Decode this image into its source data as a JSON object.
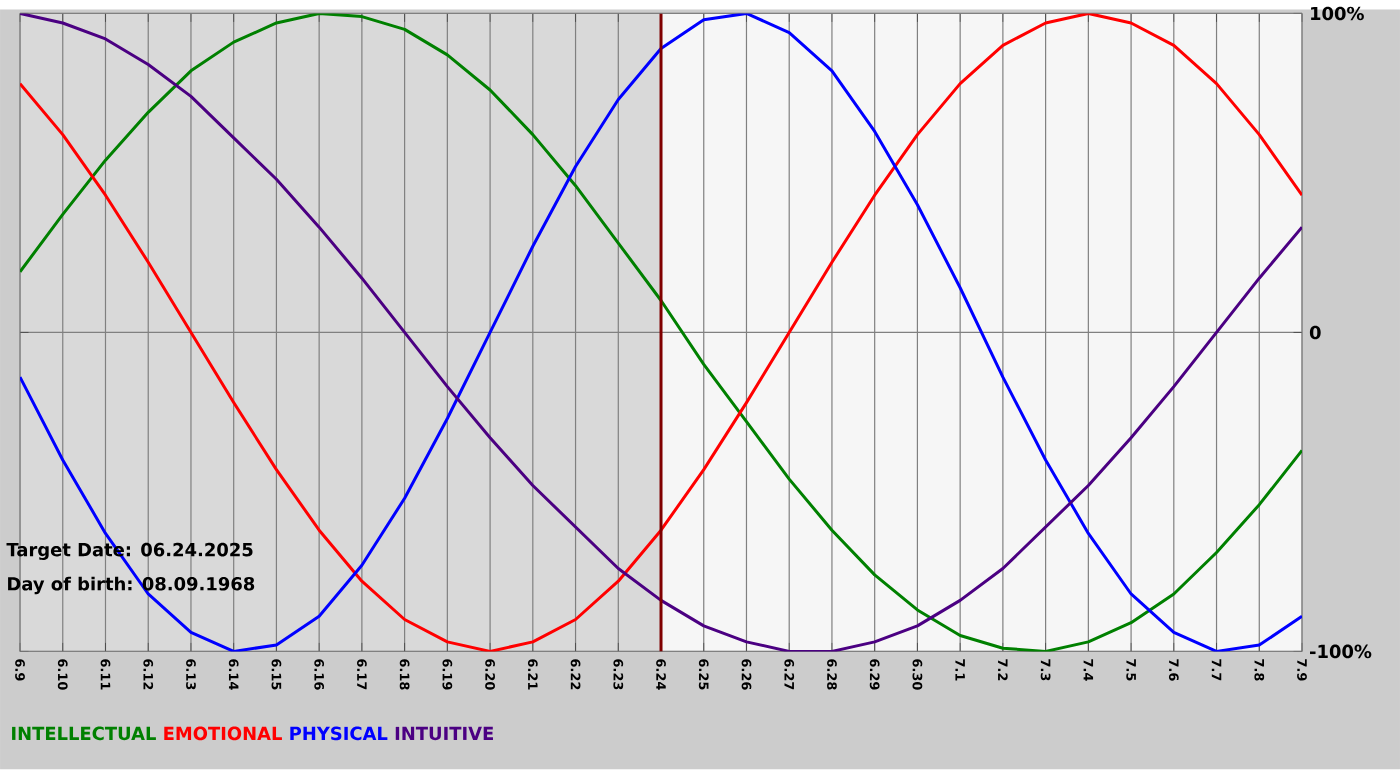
{
  "chart_data": {
    "type": "line",
    "categories": [
      "6.9",
      "6.10",
      "6.11",
      "6.12",
      "6.13",
      "6.14",
      "6.15",
      "6.16",
      "6.17",
      "6.18",
      "6.19",
      "6.20",
      "6.21",
      "6.22",
      "6.23",
      "6.24",
      "6.25",
      "6.26",
      "6.27",
      "6.28",
      "6.29",
      "6.30",
      "7.1",
      "7.2",
      "7.3",
      "7.4",
      "7.5",
      "7.6",
      "7.7",
      "7.8",
      "7.9"
    ],
    "series": [
      {
        "name": "INTELLECTUAL",
        "color": "#008000",
        "values": [
          19,
          37,
          54,
          69,
          82,
          91,
          97,
          100,
          99,
          95,
          87,
          76,
          62,
          46,
          28,
          10,
          -10,
          -28,
          -46,
          -62,
          -76,
          -87,
          -95,
          -99,
          -100,
          -97,
          -91,
          -82,
          -69,
          -54,
          -37
        ]
      },
      {
        "name": "EMOTIONAL",
        "color": "#ff0000",
        "values": [
          78,
          62,
          43,
          22,
          0,
          -22,
          -43,
          -62,
          -78,
          -90,
          -97,
          -100,
          -97,
          -90,
          -78,
          -62,
          -43,
          -22,
          0,
          22,
          43,
          62,
          78,
          90,
          97,
          100,
          97,
          90,
          78,
          62,
          43
        ]
      },
      {
        "name": "PHYSICAL",
        "color": "#0000ff",
        "values": [
          -14,
          -40,
          -63,
          -82,
          -94,
          -100,
          -98,
          -89,
          -73,
          -52,
          -27,
          0,
          27,
          52,
          73,
          89,
          98,
          100,
          94,
          82,
          63,
          40,
          14,
          -14,
          -40,
          -63,
          -82,
          -94,
          -100,
          -98,
          -89
        ]
      },
      {
        "name": "INTUITIVE",
        "color": "#4b0082",
        "values": [
          100,
          97,
          92,
          84,
          74,
          61,
          48,
          33,
          17,
          0,
          -17,
          -33,
          -48,
          -61,
          -74,
          -84,
          -92,
          -97,
          -100,
          -100,
          -97,
          -92,
          -84,
          -74,
          -61,
          -48,
          -33,
          -17,
          0,
          17,
          33
        ]
      }
    ],
    "ylim": [
      -100,
      100
    ],
    "yticks": [
      {
        "value": -100,
        "label": "-100%"
      },
      0,
      {
        "value": 100,
        "label": "100%"
      }
    ],
    "grid": true,
    "legend": "bottom",
    "marker": "none",
    "line_style": "solid",
    "ref_lines": [
      {
        "axis": "x",
        "value": "6.24",
        "color": "#800000"
      }
    ],
    "bands": [
      {
        "axis": "x",
        "from": "6.9",
        "to": "6.24",
        "color": "#d9d9d9"
      }
    ],
    "annotations": [
      "Target Date: 06.24.2025",
      "Day of birth: 08.09.1968"
    ]
  }
}
